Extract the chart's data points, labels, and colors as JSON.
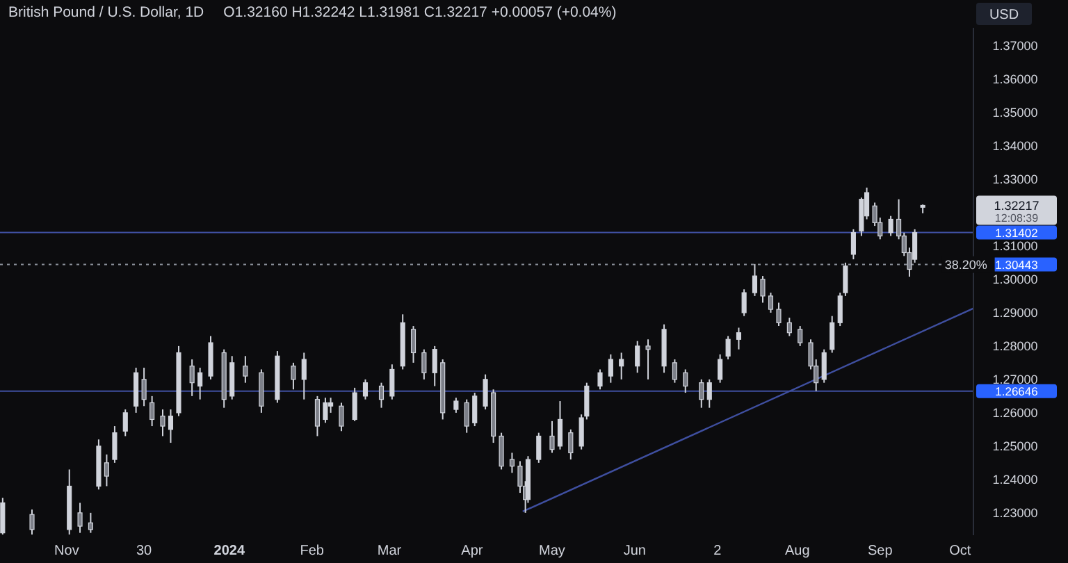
{
  "chart_data": {
    "type": "candlestick",
    "title": "British Pound / U.S. Dollar, 1D",
    "subtitle": "O1.32160  H1.32242  L1.31981  C1.32217  +0.00057 (+0.04%)",
    "color": "#d1d4dc",
    "x": [
      "2023-10-08",
      "2023-10-19",
      "2023-11-02",
      "2023-11-06",
      "2023-11-10",
      "2023-11-13",
      "2023-11-16",
      "2023-11-19",
      "2023-11-23",
      "2023-11-27",
      "2023-11-30",
      "2023-12-03",
      "2023-12-07",
      "2023-12-10",
      "2023-12-13",
      "2023-12-18",
      "2023-12-21",
      "2023-12-25",
      "2023-12-30",
      "2024-01-02",
      "2024-01-07",
      "2024-01-13",
      "2024-01-19",
      "2024-01-25",
      "2024-01-29",
      "2024-02-03",
      "2024-02-06",
      "2024-02-08",
      "2024-02-12",
      "2024-02-17",
      "2024-02-21",
      "2024-02-27",
      "2024-03-02",
      "2024-03-06",
      "2024-03-10",
      "2024-03-14",
      "2024-03-18",
      "2024-03-21",
      "2024-03-26",
      "2024-03-30",
      "2024-04-02",
      "2024-04-06",
      "2024-04-09",
      "2024-04-12",
      "2024-04-16",
      "2024-04-19",
      "2024-04-21",
      "2024-04-22",
      "2024-04-26",
      "2024-05-01",
      "2024-05-04",
      "2024-05-08",
      "2024-05-12",
      "2024-05-14",
      "2024-05-19",
      "2024-05-23",
      "2024-05-27",
      "2024-06-02",
      "2024-06-06",
      "2024-06-12",
      "2024-06-16",
      "2024-06-20",
      "2024-06-26",
      "2024-06-29",
      "2024-07-03",
      "2024-07-06",
      "2024-07-10",
      "2024-07-12",
      "2024-07-16",
      "2024-07-19",
      "2024-07-22",
      "2024-07-25",
      "2024-07-29",
      "2024-08-02",
      "2024-08-06",
      "2024-08-08",
      "2024-08-11",
      "2024-08-14",
      "2024-08-17",
      "2024-08-19",
      "2024-08-22",
      "2024-08-25",
      "2024-08-27",
      "2024-08-30",
      "2024-09-01",
      "2024-09-05",
      "2024-09-08",
      "2024-09-10",
      "2024-09-12",
      "2024-09-14",
      "2024-09-17"
    ],
    "ohlc": [
      [
        1.224,
        1.2345,
        1.2235,
        1.233
      ],
      [
        1.2295,
        1.231,
        1.2235,
        1.225
      ],
      [
        1.225,
        1.243,
        1.2235,
        1.238
      ],
      [
        1.23,
        1.233,
        1.224,
        1.226
      ],
      [
        1.227,
        1.23,
        1.224,
        1.225
      ],
      [
        1.238,
        1.252,
        1.237,
        1.25
      ],
      [
        1.245,
        1.2475,
        1.238,
        1.241
      ],
      [
        1.246,
        1.256,
        1.245,
        1.254
      ],
      [
        1.2545,
        1.261,
        1.253,
        1.26
      ],
      [
        1.262,
        1.2735,
        1.26,
        1.272
      ],
      [
        1.27,
        1.2735,
        1.262,
        1.264
      ],
      [
        1.263,
        1.265,
        1.256,
        1.258
      ],
      [
        1.259,
        1.261,
        1.253,
        1.256
      ],
      [
        1.255,
        1.261,
        1.251,
        1.259
      ],
      [
        1.26,
        1.28,
        1.259,
        1.278
      ],
      [
        1.274,
        1.276,
        1.265,
        1.269
      ],
      [
        1.268,
        1.2735,
        1.264,
        1.272
      ],
      [
        1.271,
        1.283,
        1.27,
        1.281
      ],
      [
        1.278,
        1.279,
        1.2615,
        1.264
      ],
      [
        1.265,
        1.277,
        1.264,
        1.275
      ],
      [
        1.274,
        1.277,
        1.269,
        1.271
      ],
      [
        1.272,
        1.273,
        1.26,
        1.262
      ],
      [
        1.264,
        1.2785,
        1.263,
        1.277
      ],
      [
        1.274,
        1.275,
        1.267,
        1.27
      ],
      [
        1.27,
        1.278,
        1.264,
        1.276
      ],
      [
        1.264,
        1.265,
        1.253,
        1.256
      ],
      [
        1.258,
        1.2645,
        1.257,
        1.263
      ],
      [
        1.262,
        1.2645,
        1.26,
        1.263
      ],
      [
        1.262,
        1.263,
        1.2545,
        1.256
      ],
      [
        1.258,
        1.2675,
        1.2575,
        1.266
      ],
      [
        1.265,
        1.27,
        1.264,
        1.269
      ],
      [
        1.268,
        1.269,
        1.2615,
        1.264
      ],
      [
        1.265,
        1.2745,
        1.264,
        1.273
      ],
      [
        1.274,
        1.2895,
        1.273,
        1.287
      ],
      [
        1.285,
        1.286,
        1.275,
        1.278
      ],
      [
        1.278,
        1.279,
        1.27,
        1.272
      ],
      [
        1.272,
        1.28,
        1.268,
        1.279
      ],
      [
        1.275,
        1.276,
        1.258,
        1.26
      ],
      [
        1.261,
        1.2645,
        1.26,
        1.2635
      ],
      [
        1.263,
        1.264,
        1.254,
        1.256
      ],
      [
        1.257,
        1.266,
        1.256,
        1.265
      ],
      [
        1.262,
        1.2715,
        1.261,
        1.27
      ],
      [
        1.266,
        1.267,
        1.251,
        1.253
      ],
      [
        1.253,
        1.254,
        1.243,
        1.244
      ],
      [
        1.246,
        1.248,
        1.242,
        1.244
      ],
      [
        1.244,
        1.2455,
        1.236,
        1.238
      ],
      [
        1.238,
        1.2395,
        1.23,
        1.234
      ],
      [
        1.234,
        1.247,
        1.233,
        1.246
      ],
      [
        1.246,
        1.254,
        1.245,
        1.253
      ],
      [
        1.253,
        1.2575,
        1.248,
        1.249
      ],
      [
        1.25,
        1.2635,
        1.249,
        1.258
      ],
      [
        1.254,
        1.255,
        1.246,
        1.248
      ],
      [
        1.25,
        1.2595,
        1.249,
        1.2585
      ],
      [
        1.259,
        1.269,
        1.258,
        1.268
      ],
      [
        1.268,
        1.273,
        1.267,
        1.272
      ],
      [
        1.271,
        1.2775,
        1.269,
        1.276
      ],
      [
        1.274,
        1.278,
        1.27,
        1.276
      ],
      [
        1.274,
        1.2815,
        1.272,
        1.28
      ],
      [
        1.28,
        1.282,
        1.27,
        1.279
      ],
      [
        1.274,
        1.2865,
        1.272,
        1.285
      ],
      [
        1.275,
        1.276,
        1.269,
        1.27
      ],
      [
        1.272,
        1.273,
        1.266,
        1.268
      ],
      [
        1.269,
        1.27,
        1.2615,
        1.264
      ],
      [
        1.264,
        1.27,
        1.2615,
        1.269
      ],
      [
        1.27,
        1.2775,
        1.269,
        1.276
      ],
      [
        1.277,
        1.283,
        1.276,
        1.282
      ],
      [
        1.282,
        1.2855,
        1.279,
        1.284
      ],
      [
        1.29,
        1.297,
        1.289,
        1.296
      ],
      [
        1.296,
        1.3046,
        1.295,
        1.301
      ],
      [
        1.3,
        1.301,
        1.293,
        1.295
      ],
      [
        1.295,
        1.296,
        1.29,
        1.291
      ],
      [
        1.291,
        1.293,
        1.286,
        1.287
      ],
      [
        1.287,
        1.2885,
        1.283,
        1.284
      ],
      [
        1.285,
        1.286,
        1.28,
        1.281
      ],
      [
        1.281,
        1.282,
        1.273,
        1.274
      ],
      [
        1.274,
        1.276,
        1.2665,
        1.269
      ],
      [
        1.27,
        1.279,
        1.269,
        1.278
      ],
      [
        1.279,
        1.289,
        1.278,
        1.287
      ],
      [
        1.287,
        1.296,
        1.286,
        1.295
      ],
      [
        1.296,
        1.305,
        1.295,
        1.304
      ],
      [
        1.3075,
        1.315,
        1.306,
        1.314
      ],
      [
        1.3145,
        1.3245,
        1.313,
        1.324
      ],
      [
        1.319,
        1.3275,
        1.318,
        1.326
      ],
      [
        1.322,
        1.323,
        1.316,
        1.317
      ],
      [
        1.317,
        1.3185,
        1.312,
        1.313
      ],
      [
        1.314,
        1.319,
        1.313,
        1.318
      ],
      [
        1.318,
        1.324,
        1.312,
        1.313
      ],
      [
        1.313,
        1.314,
        1.307,
        1.308
      ],
      [
        1.308,
        1.3095,
        1.3008,
        1.303
      ],
      [
        1.306,
        1.315,
        1.305,
        1.314
      ],
      [
        1.3216,
        1.32242,
        1.31981,
        1.32217
      ]
    ],
    "series": [
      {
        "type": "line",
        "color": "#3f4fa0",
        "x": [
          "2024-04-20",
          "2024-10-06"
        ],
        "values": [
          1.2304,
          1.2913
        ]
      }
    ],
    "xlim": [
      "2023-10-07",
      "2024-10-06"
    ],
    "xticks": [
      {
        "value": "2023-11-01",
        "label": "Nov"
      },
      {
        "value": "2023-11-30",
        "label": "30"
      },
      {
        "value": "2024-01-01",
        "label": "2024"
      },
      {
        "value": "2024-02-01",
        "label": "Feb"
      },
      {
        "value": "2024-03-01",
        "label": "Mar"
      },
      {
        "value": "2024-04-01",
        "label": "Apr"
      },
      {
        "value": "2024-05-01",
        "label": "May"
      },
      {
        "value": "2024-06-01",
        "label": "Jun"
      },
      {
        "value": "2024-07-02",
        "label": "2"
      },
      {
        "value": "2024-08-01",
        "label": "Aug"
      },
      {
        "value": "2024-09-01",
        "label": "Sep"
      },
      {
        "value": "2024-10-01",
        "label": "Oct"
      }
    ],
    "ylim": [
      1.2233,
      1.3754
    ],
    "yticks": [
      {
        "value": 1.23,
        "label": "1.23000"
      },
      {
        "value": 1.24,
        "label": "1.24000"
      },
      {
        "value": 1.25,
        "label": "1.25000"
      },
      {
        "value": 1.26,
        "label": "1.26000"
      },
      {
        "value": 1.27,
        "label": "1.27000"
      },
      {
        "value": 1.28,
        "label": "1.28000"
      },
      {
        "value": 1.29,
        "label": "1.29000"
      },
      {
        "value": 1.3,
        "label": "1.30000"
      },
      {
        "value": 1.31,
        "label": "1.31000"
      },
      {
        "value": 1.33,
        "label": "1.33000"
      },
      {
        "value": 1.34,
        "label": "1.34000"
      },
      {
        "value": 1.35,
        "label": "1.35000"
      },
      {
        "value": 1.36,
        "label": "1.36000"
      },
      {
        "value": 1.37,
        "label": "1.37000"
      }
    ],
    "ref_lines": [
      {
        "axis": "y",
        "value": 1.31402,
        "label": "1.31402",
        "color": "#3f4fa0",
        "line_style": "solid"
      },
      {
        "axis": "y",
        "value": 1.30443,
        "label": "1.30443",
        "color": "#8a8f99",
        "line_style": "dotted"
      },
      {
        "axis": "y",
        "value": 1.26646,
        "label": "1.26646",
        "color": "#3f4fa0",
        "line_style": "solid"
      }
    ],
    "annotations": [
      "USD",
      {
        "text": "38.20%",
        "x": "2024-09-20",
        "y": 1.30443
      },
      "1.32217",
      "12:08:39"
    ],
    "grid": false
  }
}
